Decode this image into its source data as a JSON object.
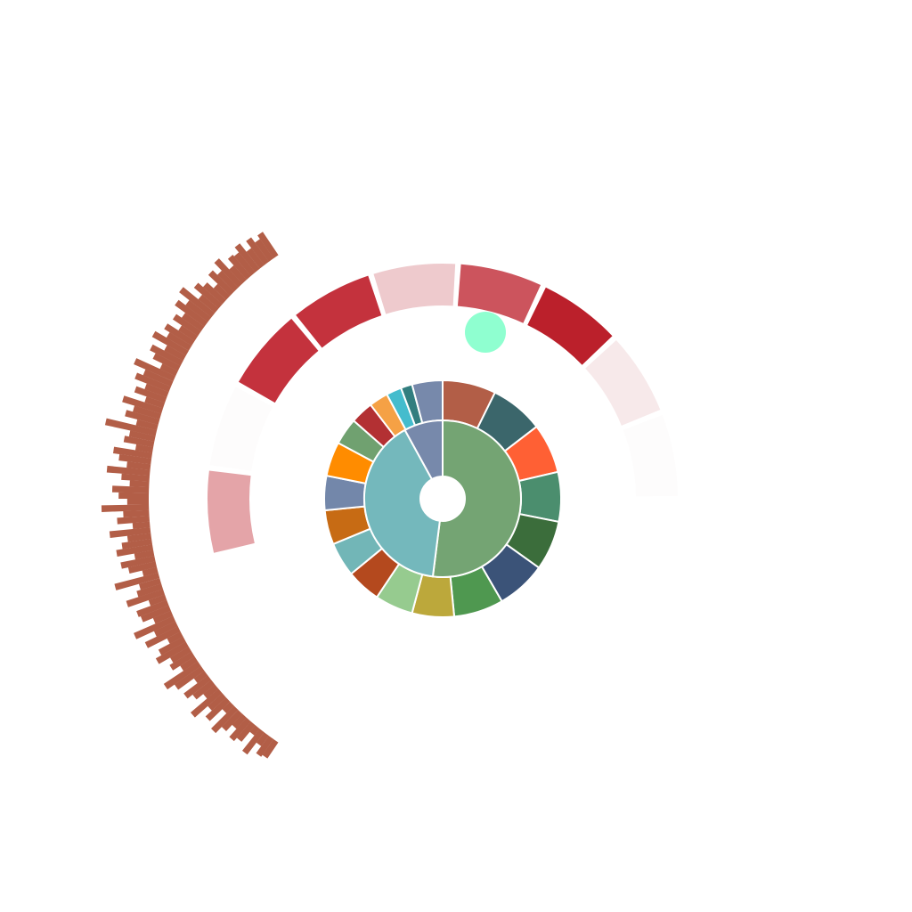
{
  "chart_data": [
    {
      "type": "sunburst",
      "inner": [
        {
          "value": 52,
          "color": "#74a473"
        },
        {
          "value": 40,
          "color": "#74b8bc"
        },
        {
          "value": 8,
          "color": "#7789ab"
        }
      ],
      "outer": [
        {
          "value": 7,
          "color": "#b25e47"
        },
        {
          "value": 7,
          "color": "#3b666b"
        },
        {
          "value": 6.5,
          "color": "#ff6034"
        },
        {
          "value": 6.5,
          "color": "#4b8e6e"
        },
        {
          "value": 6.5,
          "color": "#3b6d3b"
        },
        {
          "value": 6.5,
          "color": "#3b5378"
        },
        {
          "value": 6.5,
          "color": "#4f9850"
        },
        {
          "value": 5.5,
          "color": "#bca83b"
        },
        {
          "value": 5,
          "color": "#96cb8f"
        },
        {
          "value": 4.5,
          "color": "#b4491e"
        },
        {
          "value": 4.5,
          "color": "#72b6b7"
        },
        {
          "value": 4.5,
          "color": "#c76b14"
        },
        {
          "value": 4.5,
          "color": "#7387aa"
        },
        {
          "value": 4.5,
          "color": "#ff8c00"
        },
        {
          "value": 3.5,
          "color": "#70a170"
        },
        {
          "value": 3,
          "color": "#b33033"
        },
        {
          "value": 2.5,
          "color": "#f5a145"
        },
        {
          "value": 2,
          "color": "#44bccd"
        },
        {
          "value": 1.5,
          "color": "#327e7f"
        },
        {
          "value": 4,
          "color": "#7789ab"
        }
      ]
    },
    {
      "type": "radial-heatmap",
      "segments": [
        {
          "value": 0.45,
          "color": "#e4a4a8"
        },
        {
          "value": 0.01,
          "color": "#fdfcfc"
        },
        {
          "value": 0.92,
          "color": "#c4323d"
        },
        {
          "value": 0.9,
          "color": "#c4323d"
        },
        {
          "value": 0.25,
          "color": "#eecacd"
        },
        {
          "value": 0.78,
          "color": "#cc545d"
        },
        {
          "value": 1.0,
          "color": "#bb202b"
        },
        {
          "value": 0.1,
          "color": "#f7e9ea"
        },
        {
          "value": 0.01,
          "color": "#fdfcfc"
        }
      ]
    },
    {
      "type": "radial-bar",
      "color": "#b25e47",
      "values": [
        18,
        20,
        12,
        26,
        8,
        20,
        24,
        14,
        22,
        30,
        10,
        26,
        18,
        34,
        14,
        22,
        28,
        12,
        30,
        38,
        16,
        24,
        20,
        32,
        26,
        14,
        34,
        22,
        40,
        18,
        28,
        30,
        16,
        36,
        24,
        20,
        42,
        14,
        26,
        32,
        18,
        34,
        28,
        22,
        38,
        16,
        30,
        24,
        44,
        20,
        28,
        34,
        18,
        26,
        40,
        22,
        30,
        36,
        16,
        28,
        24,
        48,
        20,
        32,
        26,
        38,
        18,
        30,
        22,
        34,
        28,
        40,
        16,
        26,
        32,
        20,
        36,
        24,
        30,
        18,
        28,
        22,
        34,
        26,
        38,
        20,
        30,
        24,
        16,
        28,
        22,
        32,
        18,
        26,
        24,
        30,
        20,
        28,
        22,
        26
      ]
    }
  ],
  "marker": {
    "color": "#8fffd0"
  }
}
